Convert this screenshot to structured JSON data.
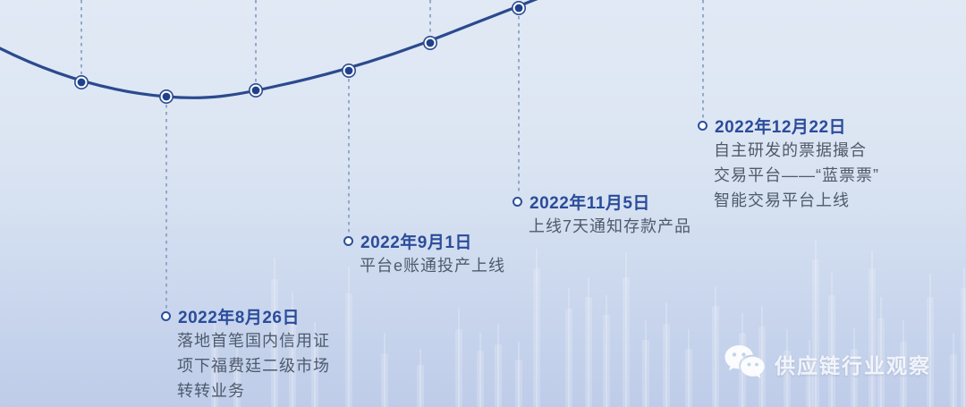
{
  "timeline": {
    "events": [
      {
        "date": "2022年8月26日",
        "desc": [
          "落地首笔国内信用证",
          "项下福费廷二级市场",
          "转转业务"
        ]
      },
      {
        "date": "2022年9月1日",
        "desc": [
          "平台e账通投产上线"
        ]
      },
      {
        "date": "2022年11月5日",
        "desc": [
          "上线7天通知存款产品"
        ]
      },
      {
        "date": "2022年12月22日",
        "desc": [
          "自主研发的票据撮合",
          "交易平台——“蓝票票”",
          "智能交易平台上线"
        ]
      }
    ]
  },
  "watermark": {
    "text": "供应链行业观察",
    "icon": "wechat-icon"
  },
  "colors": {
    "date_text": "#2a4c9a",
    "desc_text": "#4e5a6c",
    "curve": "#2b4a8e",
    "dot_core": "#1e418f",
    "dashed_line": "#8ba1c5",
    "bg_top": "#e1e9f5",
    "bg_bottom": "#bfcce9",
    "watermark_text": "#ffffff"
  }
}
